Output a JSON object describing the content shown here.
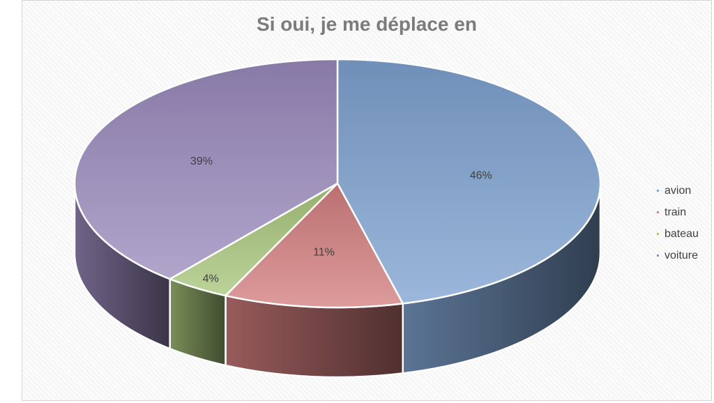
{
  "chart_data": {
    "type": "pie",
    "title": "Si oui, je me déplace en",
    "categories": [
      "avion",
      "train",
      "bateau",
      "voiture"
    ],
    "values": [
      46,
      11,
      4,
      39
    ],
    "labels": [
      "46%",
      "11%",
      "4%",
      "39%"
    ],
    "colors": [
      "#7fa3d1",
      "#d37f7f",
      "#a9c77c",
      "#9b8bbd"
    ],
    "legend_position": "right"
  }
}
